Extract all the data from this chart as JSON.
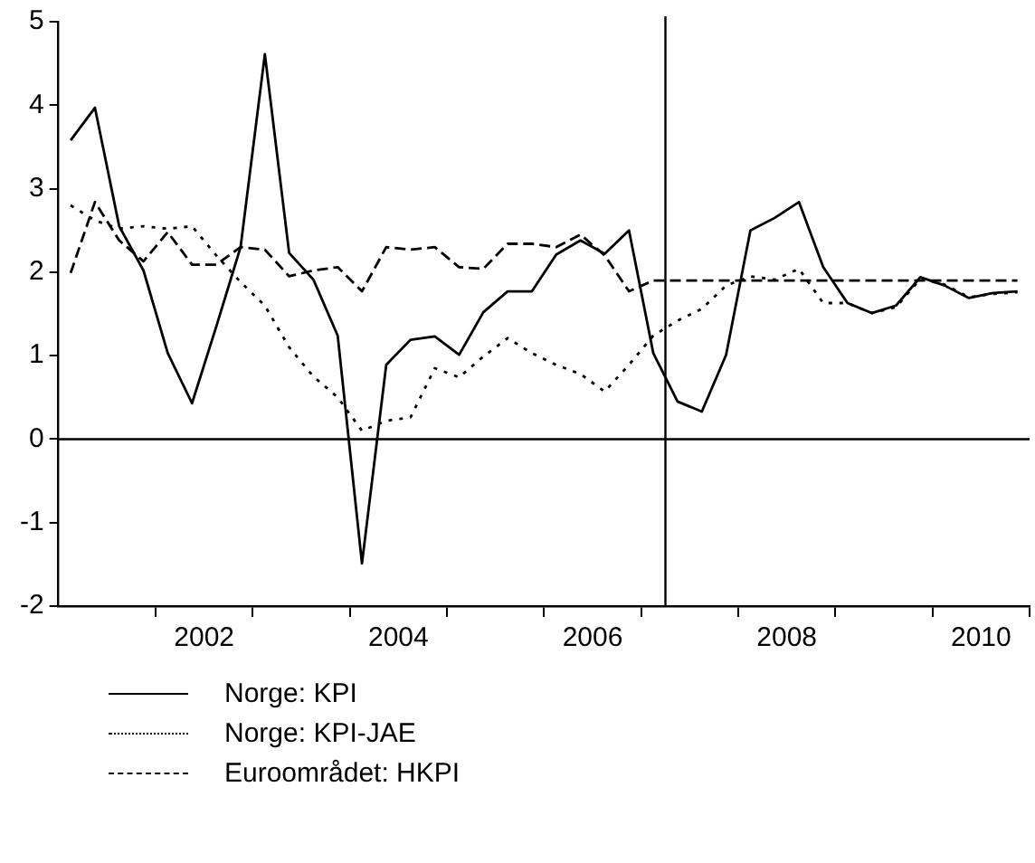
{
  "chart_data": {
    "type": "line",
    "x": [
      2001.125,
      2001.375,
      2001.625,
      2001.875,
      2002.125,
      2002.375,
      2002.625,
      2002.875,
      2003.125,
      2003.375,
      2003.625,
      2003.875,
      2004.125,
      2004.375,
      2004.625,
      2004.875,
      2005.125,
      2005.375,
      2005.625,
      2005.875,
      2006.125,
      2006.375,
      2006.625,
      2006.875,
      2007.125,
      2007.375,
      2007.625,
      2007.875,
      2008.125,
      2008.375,
      2008.625,
      2008.875,
      2009.125,
      2009.375,
      2009.625,
      2009.875,
      2010.125,
      2010.375,
      2010.625,
      2010.875
    ],
    "series": [
      {
        "name": "Norge: KPI",
        "color": "#000000",
        "line_style": "solid",
        "values": [
          3.58,
          3.97,
          2.55,
          2.02,
          1.03,
          0.43,
          1.35,
          2.3,
          4.61,
          2.23,
          1.91,
          1.24,
          -1.49,
          0.89,
          1.19,
          1.23,
          1.01,
          1.52,
          1.77,
          1.77,
          2.21,
          2.38,
          2.22,
          2.5,
          1.03,
          0.45,
          0.33,
          1.01,
          2.5,
          2.65,
          2.84,
          2.06,
          1.63,
          1.51,
          1.6,
          1.94,
          1.84,
          1.69,
          1.75,
          1.77
        ]
      },
      {
        "name": "Norge: KPI-JAE",
        "color": "#000000",
        "line_style": "dotted",
        "values": [
          2.8,
          2.62,
          2.52,
          2.55,
          2.52,
          2.55,
          2.2,
          1.88,
          1.6,
          1.1,
          0.75,
          0.5,
          0.1,
          0.22,
          0.26,
          0.85,
          0.74,
          0.99,
          1.21,
          1.03,
          0.89,
          0.78,
          0.57,
          0.89,
          1.24,
          1.42,
          1.56,
          1.84,
          1.95,
          1.91,
          2.04,
          1.63,
          1.63,
          1.51,
          1.58,
          1.92,
          1.85,
          1.7,
          1.74,
          1.76
        ]
      },
      {
        "name": "Euroområdet: HKPI",
        "color": "#000000",
        "line_style": "dashed",
        "values": [
          1.99,
          2.84,
          2.38,
          2.13,
          2.48,
          2.09,
          2.09,
          2.3,
          2.27,
          1.95,
          2.02,
          2.06,
          1.77,
          2.3,
          2.27,
          2.3,
          2.06,
          2.04,
          2.34,
          2.34,
          2.3,
          2.45,
          2.2,
          1.77,
          1.9,
          1.9,
          1.9,
          1.9,
          1.9,
          1.9,
          1.9,
          1.9,
          1.9,
          1.9,
          1.9,
          1.9,
          1.9,
          1.9,
          1.9,
          1.9
        ]
      }
    ],
    "xlim": [
      2001,
      2011
    ],
    "xticks": [
      {
        "value": 2002,
        "label": null
      },
      {
        "value": 2002.5,
        "label": "2002"
      },
      {
        "value": 2003,
        "label": null
      },
      {
        "value": 2004,
        "label": null
      },
      {
        "value": 2004.5,
        "label": "2004"
      },
      {
        "value": 2005,
        "label": null
      },
      {
        "value": 2006,
        "label": null
      },
      {
        "value": 2006.5,
        "label": "2006"
      },
      {
        "value": 2007,
        "label": null
      },
      {
        "value": 2008,
        "label": null
      },
      {
        "value": 2008.5,
        "label": "2008"
      },
      {
        "value": 2009,
        "label": null
      },
      {
        "value": 2010,
        "label": null
      },
      {
        "value": 2010.5,
        "label": "2010"
      },
      {
        "value": 2011,
        "label": null
      }
    ],
    "ylim": [
      -2,
      5
    ],
    "yticks": [
      -2,
      -1,
      0,
      1,
      2,
      3,
      4,
      5
    ],
    "ref_lines": [
      {
        "axis": "y",
        "value": 0
      },
      {
        "axis": "x",
        "value": 2007.25
      }
    ],
    "grid": false,
    "legend": "bottom",
    "marker": "none"
  }
}
